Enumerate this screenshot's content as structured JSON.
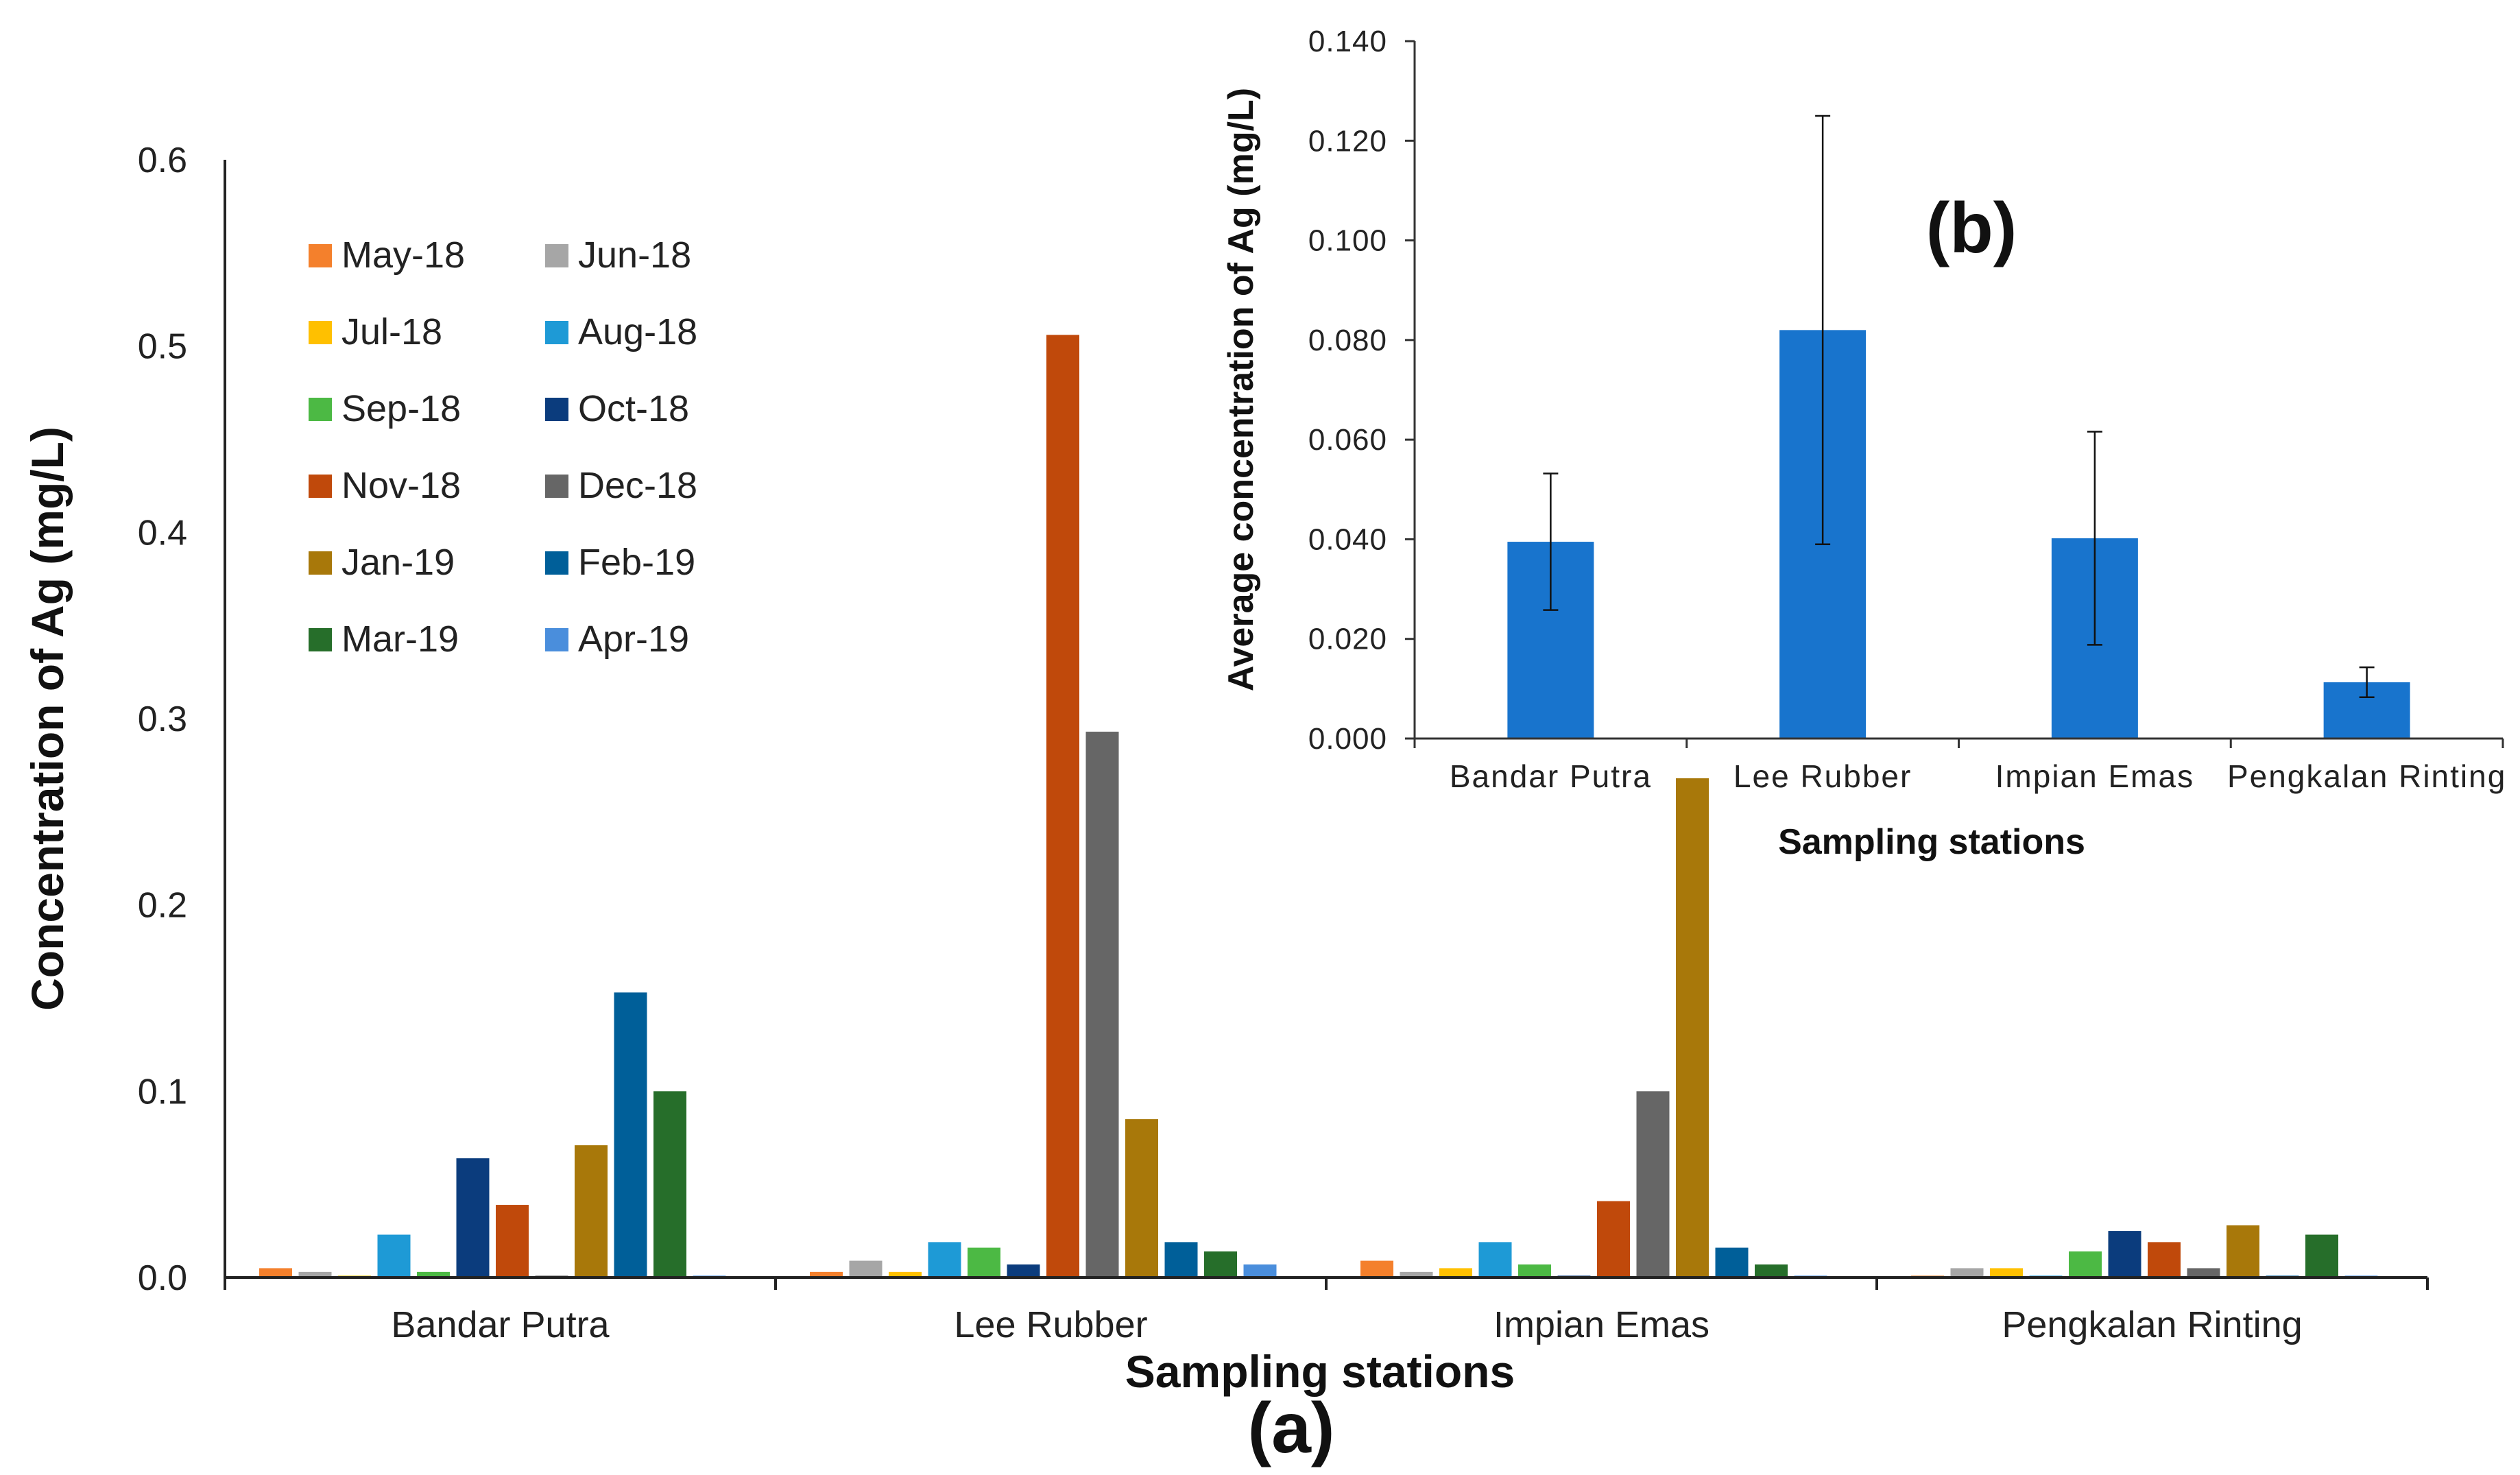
{
  "chart_data": [
    {
      "panel": "(a)",
      "type": "bar",
      "title": "",
      "xlabel": "Sampling stations",
      "ylabel": "Concentration of Ag (mg/L)",
      "ylim": [
        0,
        0.6
      ],
      "yticks": [
        "0.0",
        "0.1",
        "0.2",
        "0.3",
        "0.4",
        "0.5",
        "0.6"
      ],
      "categories": [
        "Bandar Putra",
        "Lee Rubber",
        "Impian Emas",
        "Pengkalan Rinting"
      ],
      "legend_position": "top-left",
      "series": [
        {
          "name": "May-18",
          "color": "#F4802C",
          "values": [
            0.005,
            0.003,
            0.009,
            0.001
          ]
        },
        {
          "name": "Jun-18",
          "color": "#A6A6A6",
          "values": [
            0.003,
            0.009,
            0.003,
            0.005
          ]
        },
        {
          "name": "Jul-18",
          "color": "#FFC000",
          "values": [
            0.001,
            0.003,
            0.005,
            0.005
          ]
        },
        {
          "name": "Aug-18",
          "color": "#1E9AD6",
          "values": [
            0.023,
            0.019,
            0.019,
            0.001
          ]
        },
        {
          "name": "Sep-18",
          "color": "#4CB944",
          "values": [
            0.003,
            0.016,
            0.007,
            0.014
          ]
        },
        {
          "name": "Oct-18",
          "color": "#0B3C7D",
          "values": [
            0.064,
            0.007,
            0.001,
            0.025
          ]
        },
        {
          "name": "Nov-18",
          "color": "#C0490B",
          "values": [
            0.039,
            0.506,
            0.041,
            0.019
          ]
        },
        {
          "name": "Dec-18",
          "color": "#666666",
          "values": [
            0.001,
            0.293,
            0.1,
            0.005
          ]
        },
        {
          "name": "Jan-19",
          "color": "#A8780A",
          "values": [
            0.071,
            0.085,
            0.268,
            0.028
          ]
        },
        {
          "name": "Feb-19",
          "color": "#005F99",
          "values": [
            0.153,
            0.019,
            0.016,
            0.001
          ]
        },
        {
          "name": "Mar-19",
          "color": "#266E2A",
          "values": [
            0.1,
            0.014,
            0.007,
            0.023
          ]
        },
        {
          "name": "Apr-19",
          "color": "#4A8EDC",
          "values": [
            0.001,
            0.007,
            0.001,
            0.001
          ]
        }
      ]
    },
    {
      "panel": "(b)",
      "type": "bar",
      "title": "",
      "xlabel": "Sampling stations",
      "ylabel": "Average concentration of Ag (mg/L)",
      "ylim": [
        0,
        0.14
      ],
      "yticks": [
        "0.000",
        "0.020",
        "0.040",
        "0.060",
        "0.080",
        "0.100",
        "0.120",
        "0.140"
      ],
      "categories": [
        "Bandar Putra",
        "Lee Rubber",
        "Impian Emas",
        "Pengkalan Rinting"
      ],
      "bar_color": "#1874CD",
      "values": [
        0.0395,
        0.082,
        0.0402,
        0.0113
      ],
      "error_bars": [
        0.0137,
        0.043,
        0.0214,
        0.003
      ]
    }
  ]
}
